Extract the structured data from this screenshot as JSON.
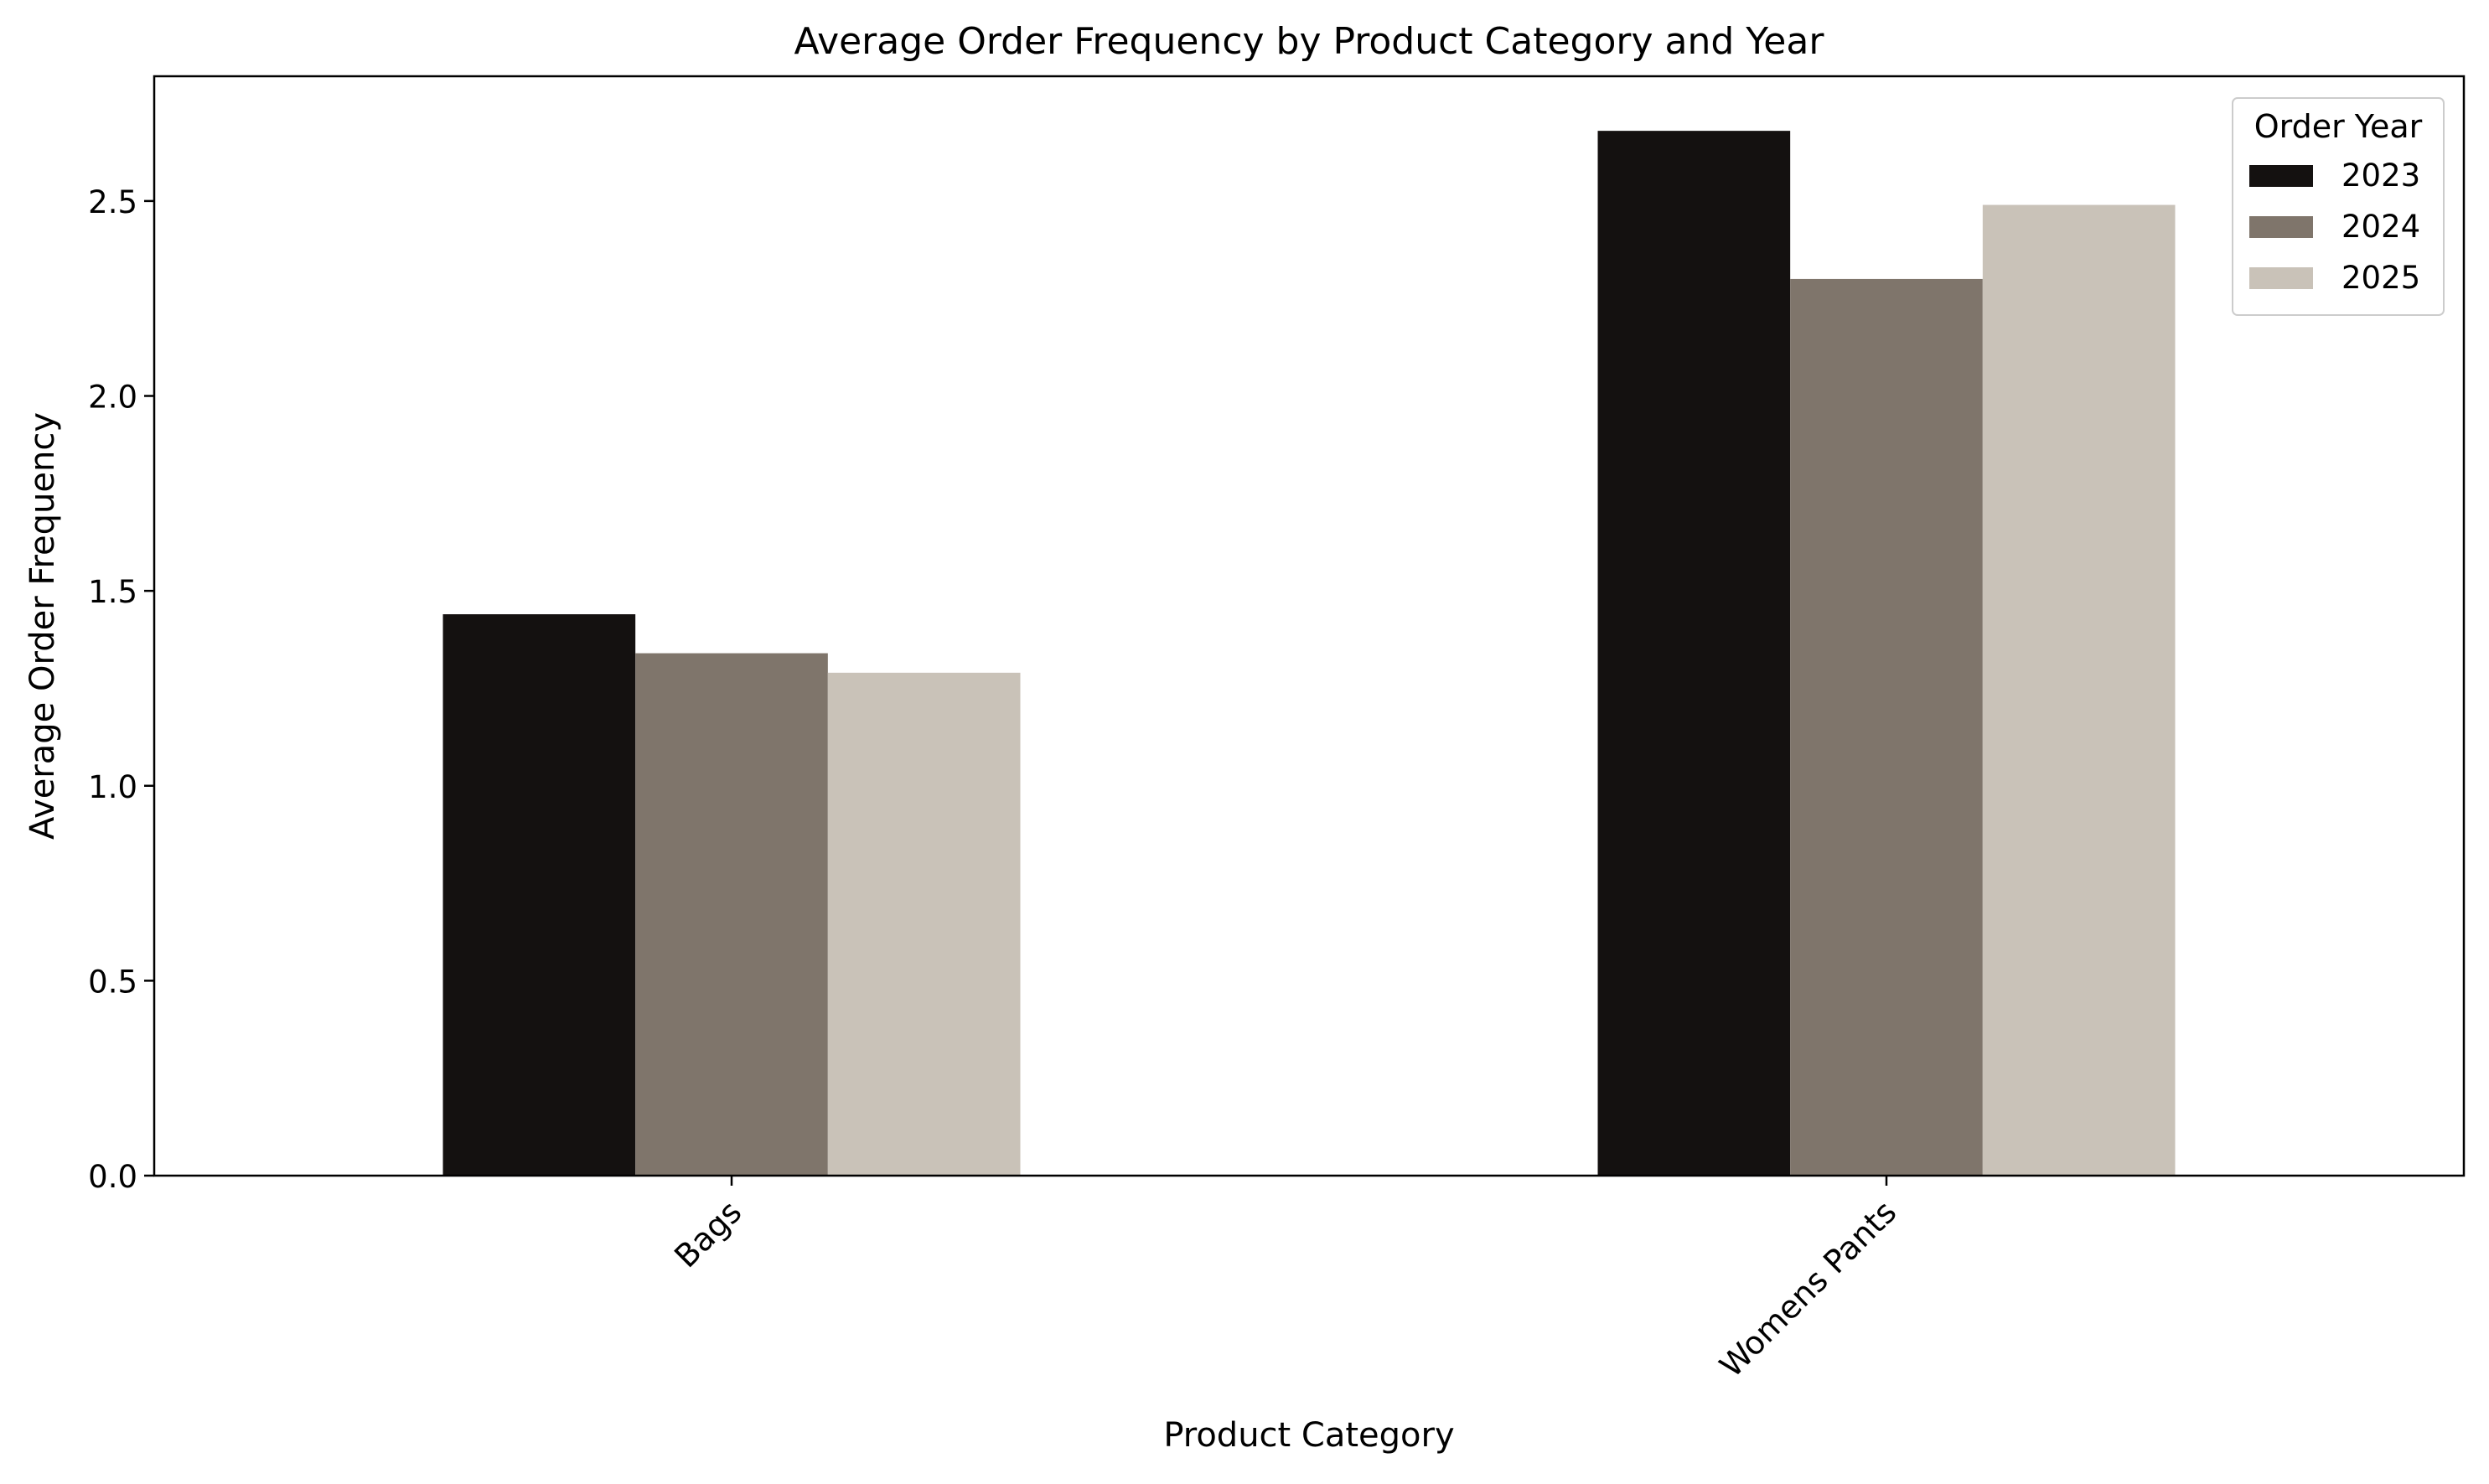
{
  "chart_data": {
    "type": "bar",
    "title": "Average Order Frequency by Product Category and Year",
    "xlabel": "Product Category",
    "ylabel": "Average Order Frequency",
    "categories": [
      "Bags",
      "Womens Pants"
    ],
    "series": [
      {
        "name": "2023",
        "color": "#141110",
        "values": [
          1.44,
          2.68
        ]
      },
      {
        "name": "2024",
        "color": "#7f756b",
        "values": [
          1.34,
          2.3
        ]
      },
      {
        "name": "2025",
        "color": "#c9c2b8",
        "values": [
          1.29,
          2.49
        ]
      }
    ],
    "ylim": [
      0,
      2.82
    ],
    "yticks": [
      "0.0",
      "0.5",
      "1.0",
      "1.5",
      "2.0",
      "2.5"
    ],
    "grid": false,
    "legend": {
      "title": "Order Year",
      "placement": "top-right"
    }
  }
}
